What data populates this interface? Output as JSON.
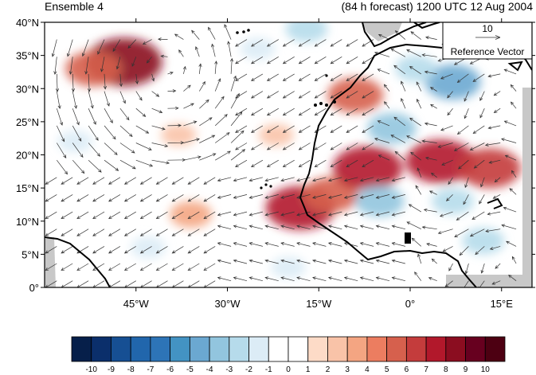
{
  "title_left": "Ensemble 4",
  "title_right": "(84 h forecast) 1200 UTC 12 Aug 2004",
  "map": {
    "lon_range": [
      -60,
      20
    ],
    "lat_range": [
      0,
      40
    ],
    "x_ticks": [
      {
        "lon": -45,
        "label": "45°W"
      },
      {
        "lon": -30,
        "label": "30°W"
      },
      {
        "lon": -15,
        "label": "15°W"
      },
      {
        "lon": 0,
        "label": "0°"
      },
      {
        "lon": 15,
        "label": "15°E"
      }
    ],
    "y_ticks": [
      {
        "lat": 0,
        "label": "0°"
      },
      {
        "lat": 5,
        "label": "5°N"
      },
      {
        "lat": 10,
        "label": "10°N"
      },
      {
        "lat": 15,
        "label": "15°N"
      },
      {
        "lat": 20,
        "label": "20°N"
      },
      {
        "lat": 25,
        "label": "25°N"
      },
      {
        "lat": 30,
        "label": "30°N"
      },
      {
        "lat": 35,
        "label": "35°N"
      },
      {
        "lat": 40,
        "label": "40°N"
      }
    ],
    "reference_vector": {
      "magnitude": "10",
      "label": "Reference Vector"
    },
    "anomalies": [
      {
        "lon": -47,
        "lat": 34,
        "value": 8
      },
      {
        "lon": -52,
        "lat": 33,
        "value": 5
      },
      {
        "lon": -18,
        "lat": 12,
        "value": 7
      },
      {
        "lon": -13,
        "lat": 14,
        "value": 5
      },
      {
        "lon": -7,
        "lat": 18,
        "value": 7
      },
      {
        "lon": -9,
        "lat": 29,
        "value": 5
      },
      {
        "lon": 5,
        "lat": 19,
        "value": 7
      },
      {
        "lon": 13,
        "lat": 18,
        "value": 6
      },
      {
        "lon": -36,
        "lat": 11,
        "value": 3
      },
      {
        "lon": -22,
        "lat": 23,
        "value": 2
      },
      {
        "lon": -38,
        "lat": 23,
        "value": 2
      },
      {
        "lon": -55,
        "lat": 22,
        "value": -2
      },
      {
        "lon": 7,
        "lat": 31,
        "value": -5
      },
      {
        "lon": 1,
        "lat": 33,
        "value": -3
      },
      {
        "lon": -3,
        "lat": 24,
        "value": -4
      },
      {
        "lon": -5,
        "lat": 13,
        "value": -4
      },
      {
        "lon": 7,
        "lat": 13,
        "value": -3
      },
      {
        "lon": 12,
        "lat": 7,
        "value": -3
      },
      {
        "lon": -25,
        "lat": 36,
        "value": -2
      },
      {
        "lon": -43,
        "lat": 6,
        "value": -2
      },
      {
        "lon": -20,
        "lat": 3,
        "value": -2
      },
      {
        "lon": -17,
        "lat": 39,
        "value": -3
      }
    ]
  },
  "colorbar": {
    "labels": [
      "-10",
      "-9",
      "-8",
      "-7",
      "-6",
      "-5",
      "-4",
      "-3",
      "-2",
      "-1",
      "0",
      "1",
      "2",
      "3",
      "4",
      "5",
      "6",
      "7",
      "8",
      "9",
      "10"
    ],
    "colors": [
      "#061f4a",
      "#0b2f6b",
      "#164f93",
      "#2166ac",
      "#2d74b7",
      "#4393c3",
      "#6ba8d1",
      "#92c5de",
      "#b6dbeb",
      "#dcecf6",
      "#ffffff",
      "#ffffff",
      "#fddbc7",
      "#f9c3a8",
      "#f4a582",
      "#ec7d60",
      "#d6604d",
      "#c43c3c",
      "#b2182b",
      "#8b0d20",
      "#67001f",
      "#4d0012"
    ]
  },
  "colors": {
    "land_gray": "#c8c8c8",
    "coast": "#000000",
    "arrow": "#333333"
  }
}
